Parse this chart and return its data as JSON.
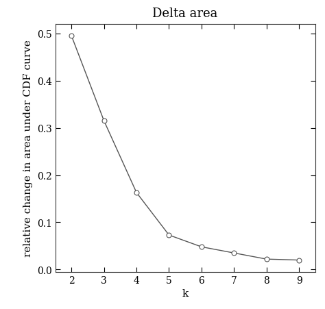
{
  "title": "Delta area",
  "xlabel": "k",
  "ylabel": "relative change in area under CDF curve",
  "x": [
    2,
    3,
    4,
    5,
    6,
    7,
    8,
    9
  ],
  "y": [
    0.495,
    0.315,
    0.163,
    0.073,
    0.048,
    0.035,
    0.022,
    0.02
  ],
  "xlim": [
    1.5,
    9.5
  ],
  "ylim": [
    -0.005,
    0.52
  ],
  "xticks": [
    2,
    3,
    4,
    5,
    6,
    7,
    8,
    9
  ],
  "yticks": [
    0.0,
    0.1,
    0.2,
    0.3,
    0.4,
    0.5
  ],
  "line_color": "#555555",
  "marker": "o",
  "marker_facecolor": "white",
  "marker_edgecolor": "#555555",
  "marker_size": 5,
  "line_width": 1.0,
  "background_color": "#ffffff",
  "title_fontsize": 13,
  "label_fontsize": 11,
  "tick_fontsize": 10,
  "font_family": "serif"
}
